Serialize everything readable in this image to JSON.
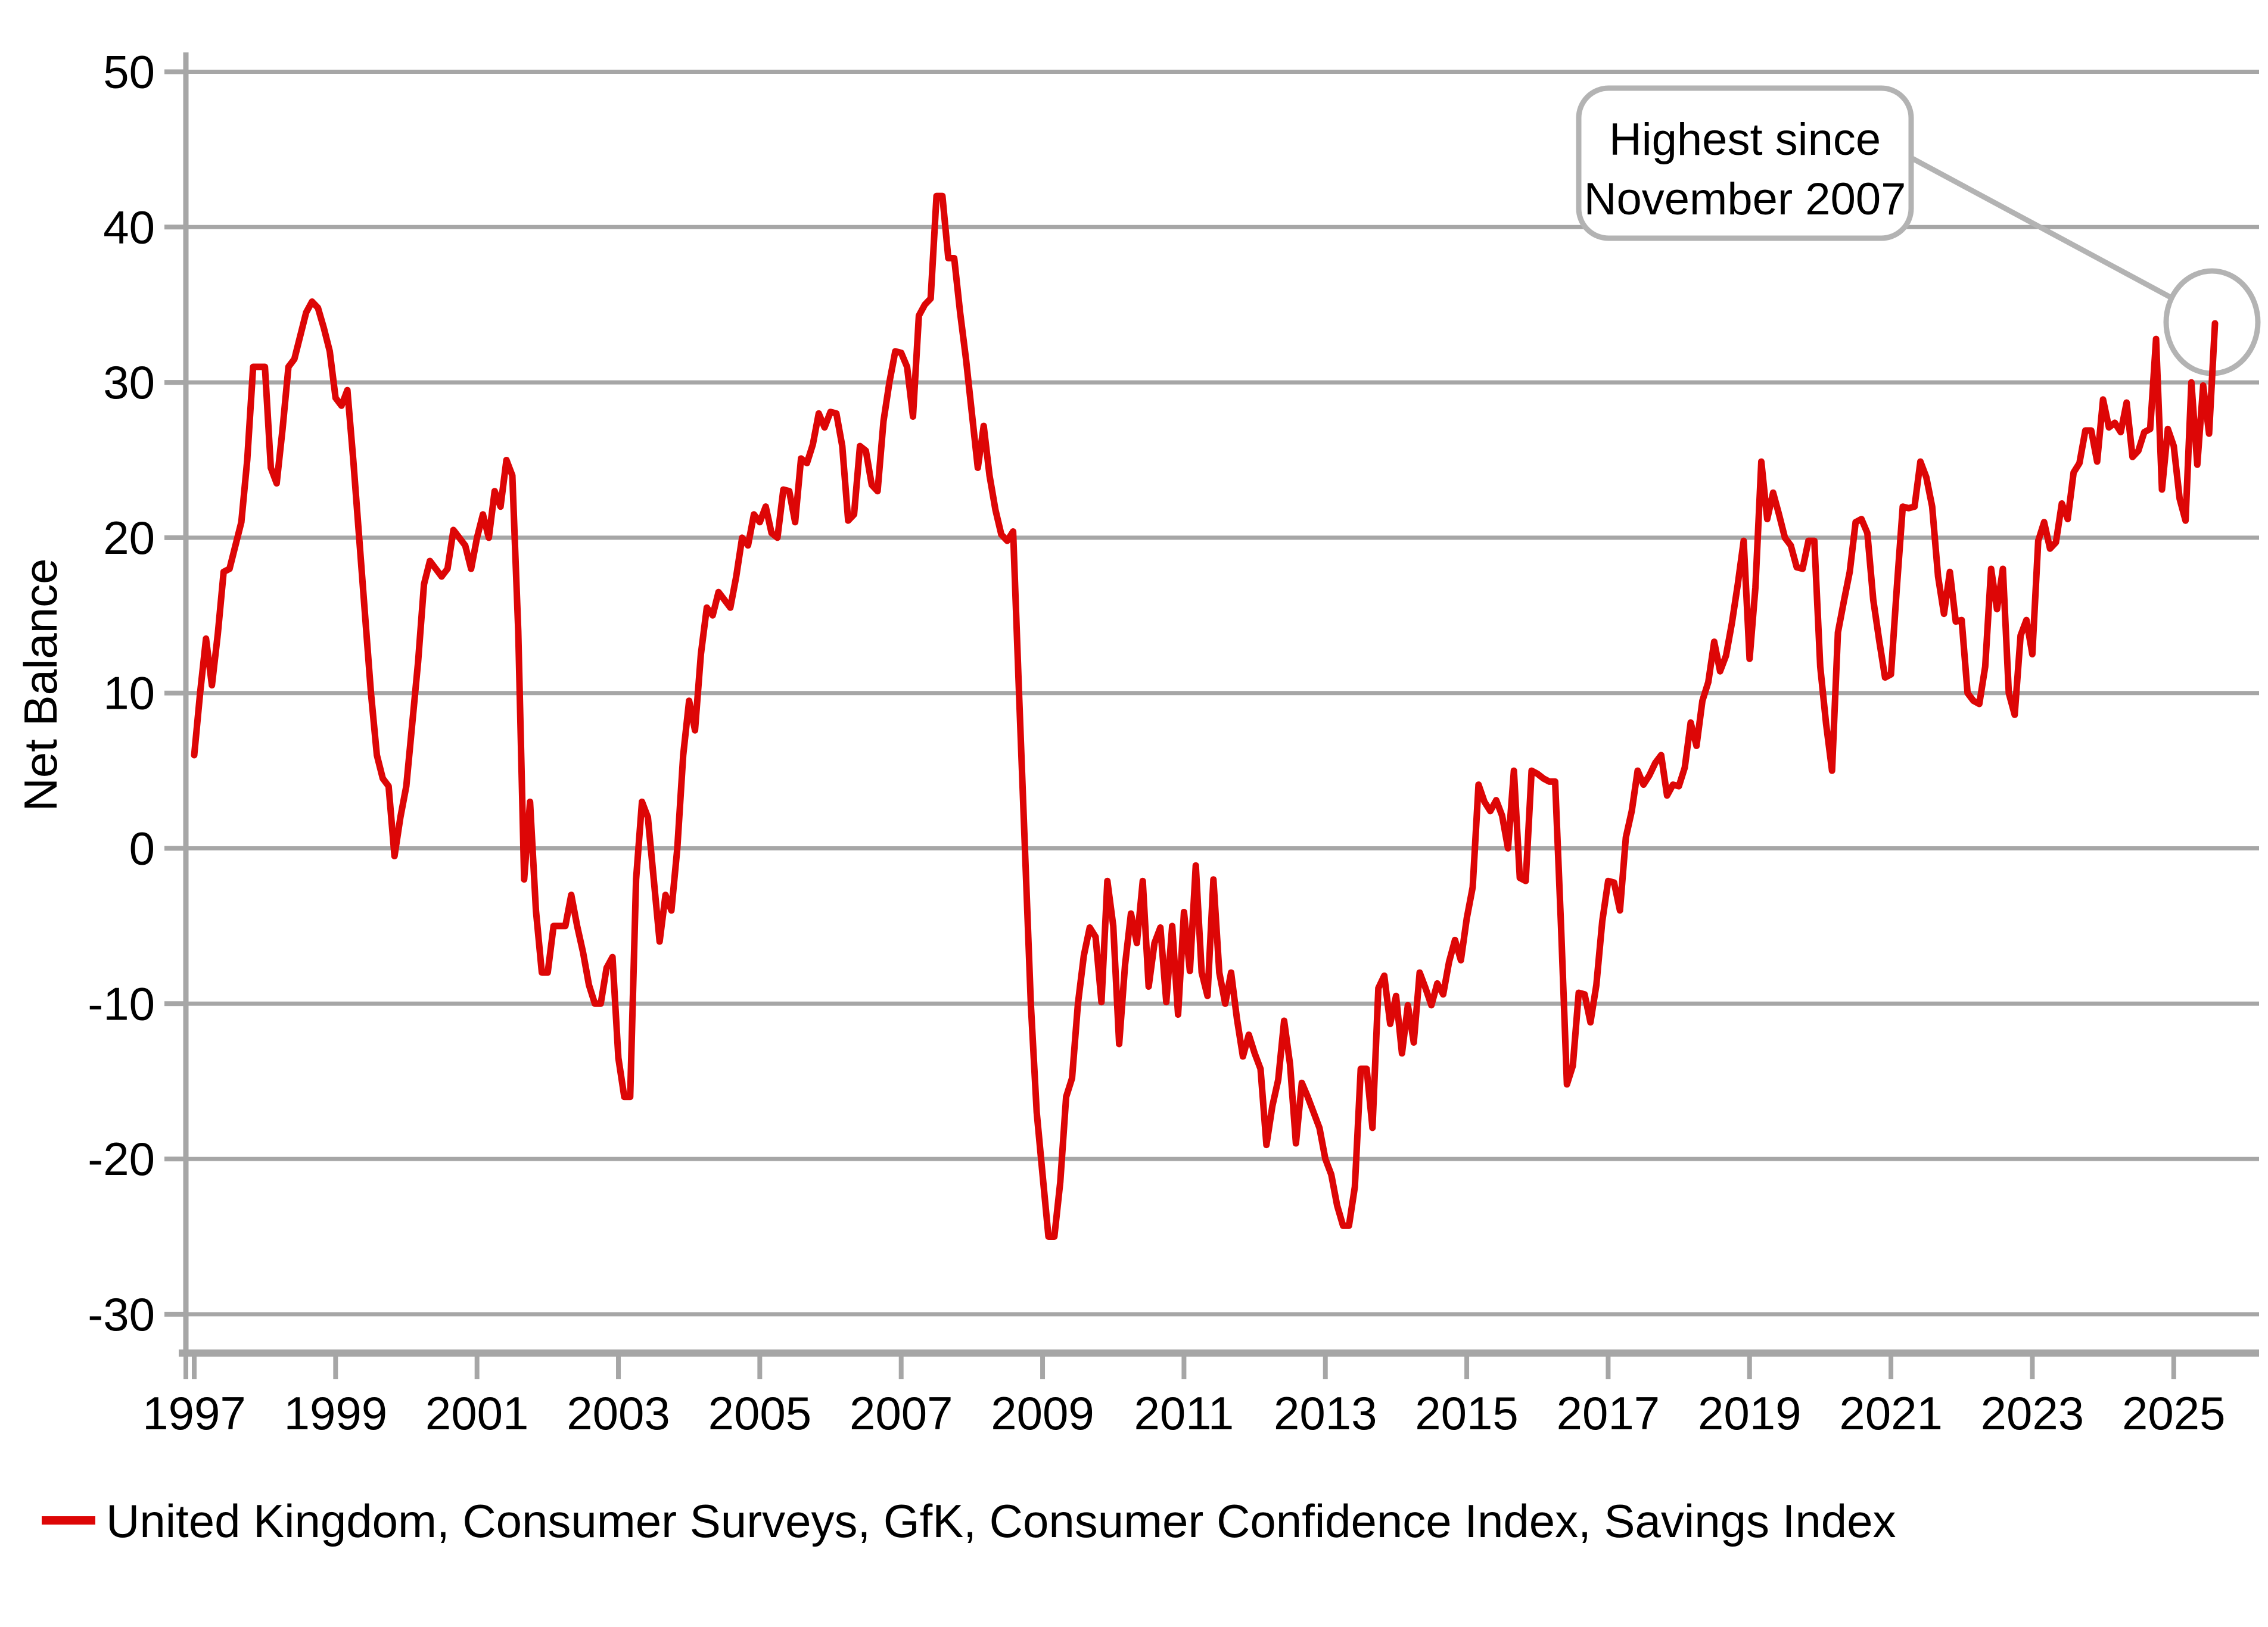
{
  "chart_data": {
    "type": "line",
    "title": "",
    "xlabel": "",
    "ylabel": "Net Balance",
    "grid": "horizontal",
    "ylim": [
      -33,
      52
    ],
    "yticks": [
      50,
      40,
      30,
      20,
      10,
      0,
      -10,
      -20,
      -30
    ],
    "x_tick_years": [
      "1997",
      "1999",
      "2001",
      "2003",
      "2005",
      "2007",
      "2009",
      "2011",
      "2013",
      "2015",
      "2017",
      "2019",
      "2021",
      "2023",
      "2025"
    ],
    "legend_position": "bottom-left",
    "series": [
      {
        "name": "United Kingdom, Consumer Surveys, GfK, Consumer Confidence Index, Savings Index",
        "color": "#dd0606",
        "frequency": "monthly",
        "start_year": 1997,
        "start_month": 1,
        "values": [
          6,
          10,
          13.5,
          10.5,
          13.8,
          17.8,
          18,
          19.5,
          21,
          25,
          31,
          31,
          31,
          24.5,
          23.5,
          27,
          31,
          31.5,
          33,
          34.5,
          35.2,
          34.8,
          33.5,
          32,
          29,
          28.5,
          29.5,
          25,
          20,
          15,
          10,
          6,
          4.5,
          4,
          -0.5,
          2,
          4,
          8,
          12,
          17,
          18.5,
          18,
          17.5,
          18,
          20.5,
          20,
          19.5,
          18,
          20,
          21.5,
          20,
          23,
          22,
          25,
          24,
          14,
          -2,
          3,
          -4,
          -8,
          -8,
          -5,
          -5,
          -5,
          -3,
          -5,
          -6.7,
          -8.8,
          -10,
          -10,
          -7.7,
          -7,
          -13.5,
          -16,
          -16,
          -2,
          3,
          2,
          -2,
          -6,
          -3,
          -4,
          0,
          6,
          9.5,
          7.6,
          12.5,
          15.5,
          15,
          16.5,
          16,
          15.5,
          17.5,
          20,
          19.5,
          21.5,
          21,
          22,
          20.3,
          20,
          23.1,
          23,
          21,
          25.1,
          24.8,
          26,
          28,
          27.1,
          28.1,
          28,
          25.9,
          21.1,
          21.5,
          25.9,
          25.6,
          23.4,
          23,
          27.5,
          30,
          32,
          31.9,
          31,
          27.8,
          34.3,
          35,
          35.4,
          42,
          42,
          38,
          38,
          34.5,
          31.5,
          28,
          24.5,
          27.2,
          24,
          21.8,
          20.2,
          19.8,
          20.4,
          10,
          0,
          -10,
          -17,
          -21,
          -25,
          -25,
          -21.5,
          -16,
          -14.8,
          -10,
          -6.9,
          -5.1,
          -5.7,
          -9.9,
          -2.1,
          -5,
          -12.6,
          -7.5,
          -4.2,
          -6.1,
          -2.1,
          -8.9,
          -6.1,
          -5.1,
          -9.9,
          -5,
          -10.7,
          -4.1,
          -7.9,
          -1.1,
          -8,
          -9.5,
          -2,
          -8,
          -10,
          -8,
          -11,
          -13.4,
          -12,
          -13.2,
          -14.2,
          -19.1,
          -16.6,
          -14.9,
          -11.1,
          -13.9,
          -19,
          -15.1,
          -16,
          -17,
          -18,
          -20,
          -21,
          -23,
          -24.3,
          -24.3,
          -21.8,
          -14.2,
          -14.2,
          -18,
          -9,
          -8.2,
          -11.3,
          -9.5,
          -13.2,
          -10.1,
          -12.5,
          -8,
          -9,
          -10.1,
          -8.7,
          -9.4,
          -7.3,
          -5.9,
          -7.2,
          -4.5,
          -2.5,
          4.1,
          3,
          2.4,
          3.1,
          2.1,
          0,
          5,
          -1.9,
          -2.1,
          5,
          4.8,
          4.5,
          4.3,
          4.3,
          -5,
          -15.2,
          -14,
          -9.3,
          -9.4,
          -11.2,
          -8.8,
          -4.7,
          -2.1,
          -2.2,
          -4,
          0.7,
          2.4,
          5,
          4.1,
          4.7,
          5.5,
          6,
          3.4,
          4.1,
          4,
          5.2,
          8.1,
          6.6,
          9.5,
          10.7,
          13.3,
          11.4,
          12.4,
          14.5,
          17,
          19.8,
          12.2,
          16.8,
          24.9,
          21.2,
          22.9,
          21.5,
          20,
          19.5,
          18.1,
          18,
          19.8,
          19.8,
          11.7,
          8,
          5,
          13.9,
          15.9,
          17.8,
          21,
          21.2,
          20.3,
          16,
          13.4,
          11,
          11.2,
          16.8,
          22,
          21.9,
          22,
          24.9,
          23.9,
          22,
          17.5,
          15.1,
          17.8,
          14.6,
          14.7,
          10,
          9.5,
          9.3,
          11.7,
          18,
          15.4,
          18,
          10,
          8.6,
          13.7,
          14.7,
          12.5,
          19.8,
          21,
          19.3,
          19.7,
          22.2,
          21.2,
          24.2,
          24.8,
          26.9,
          26.9,
          24.9,
          28.9,
          27.1,
          27.4,
          26.8,
          28.7,
          25.2,
          25.6,
          26.8,
          27,
          32.8,
          23.1,
          27,
          25.9,
          22.5,
          21.1,
          30,
          24.7,
          29.8,
          26.7,
          33.8
        ]
      }
    ],
    "annotation": {
      "line1": "Highest since",
      "line2": "November 2007",
      "points_to": "latest value of series"
    }
  },
  "colors": {
    "series_red": "#dd0606",
    "gridline_gray": "#a6a6a6",
    "axis_gray": "#a6a6a6",
    "callout_gray": "#b3b3b3",
    "text_black": "#000000",
    "background": "#ffffff"
  }
}
